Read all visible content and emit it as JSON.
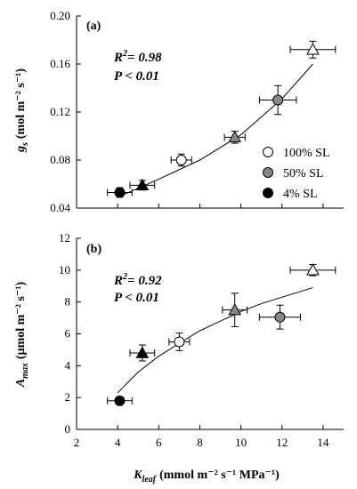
{
  "chart_data": [
    {
      "type": "scatter",
      "panel_label": "(a)",
      "ylabel_main": "g",
      "ylabel_sub": "s",
      "ylabel_unit": "(mol m⁻² s⁻¹)",
      "xlim": [
        2,
        15
      ],
      "ylim": [
        0.04,
        0.2
      ],
      "yticks": [
        0.04,
        0.08,
        0.12,
        0.16,
        0.2
      ],
      "ytick_labels": [
        "0.04",
        "0.08",
        "0.12",
        "0.16",
        "0.20"
      ],
      "stats_r2_prefix": "R",
      "stats_r2_suffix": "= 0.98",
      "stats_p": "P < 0.01",
      "legend": [
        {
          "label": "100% SL",
          "fill": "#ffffff"
        },
        {
          "label": "50% SL",
          "fill": "#888888"
        },
        {
          "label": "4% SL",
          "fill": "#000000"
        }
      ],
      "points": [
        {
          "x": 4.1,
          "y": 0.053,
          "xerr": 0.6,
          "yerr": 0.004,
          "marker": "circle",
          "fill": "#000000"
        },
        {
          "x": 5.2,
          "y": 0.059,
          "xerr": 0.6,
          "yerr": 0.004,
          "marker": "triangle",
          "fill": "#000000"
        },
        {
          "x": 7.1,
          "y": 0.08,
          "xerr": 0.5,
          "yerr": 0.005,
          "marker": "circle",
          "fill": "#ffffff"
        },
        {
          "x": 9.7,
          "y": 0.099,
          "xerr": 0.5,
          "yerr": 0.005,
          "marker": "triangle",
          "fill": "#888888"
        },
        {
          "x": 11.8,
          "y": 0.13,
          "xerr": 0.9,
          "yerr": 0.012,
          "marker": "circle",
          "fill": "#888888"
        },
        {
          "x": 13.5,
          "y": 0.172,
          "xerr": 1.1,
          "yerr": 0.007,
          "marker": "triangle",
          "fill": "#ffffff"
        }
      ],
      "fit_curve": {
        "x": [
          4.0,
          6.0,
          8.0,
          10.0,
          12.0,
          13.5
        ],
        "y": [
          0.049,
          0.064,
          0.08,
          0.101,
          0.131,
          0.16
        ]
      }
    },
    {
      "type": "scatter",
      "panel_label": "(b)",
      "ylabel_main": "A",
      "ylabel_sub": "max",
      "ylabel_unit": "(μmol m⁻² s⁻¹)",
      "xlabel_main": "K",
      "xlabel_sub": "leaf",
      "xlabel_unit": "(mmol m⁻² s⁻¹ MPa⁻¹)",
      "xlim": [
        2,
        15
      ],
      "ylim": [
        0,
        12
      ],
      "xticks": [
        2,
        4,
        6,
        8,
        10,
        12,
        14
      ],
      "xtick_labels": [
        "2",
        "4",
        "6",
        "8",
        "10",
        "12",
        "14"
      ],
      "yticks": [
        0,
        2,
        4,
        6,
        8,
        10,
        12
      ],
      "ytick_labels": [
        "0",
        "2",
        "4",
        "6",
        "8",
        "10",
        "12"
      ],
      "stats_r2_prefix": "R",
      "stats_r2_suffix": "= 0.92",
      "stats_p": "P < 0.01",
      "points": [
        {
          "x": 4.1,
          "y": 1.8,
          "xerr": 0.6,
          "yerr": 0.12,
          "marker": "circle",
          "fill": "#000000"
        },
        {
          "x": 5.2,
          "y": 4.8,
          "xerr": 0.6,
          "yerr": 0.5,
          "marker": "triangle",
          "fill": "#000000"
        },
        {
          "x": 7.0,
          "y": 5.5,
          "xerr": 0.5,
          "yerr": 0.55,
          "marker": "circle",
          "fill": "#ffffff"
        },
        {
          "x": 9.7,
          "y": 7.5,
          "xerr": 0.6,
          "yerr": 1.05,
          "marker": "triangle",
          "fill": "#888888"
        },
        {
          "x": 11.9,
          "y": 7.05,
          "xerr": 1.0,
          "yerr": 0.75,
          "marker": "circle",
          "fill": "#888888"
        },
        {
          "x": 13.5,
          "y": 10.0,
          "xerr": 1.1,
          "yerr": 0.35,
          "marker": "triangle",
          "fill": "#ffffff"
        }
      ],
      "fit_curve": {
        "x": [
          4.0,
          5.0,
          6.0,
          7.0,
          8.0,
          9.0,
          10.0,
          11.0,
          12.0,
          13.5
        ],
        "y": [
          2.3,
          3.6,
          4.6,
          5.4,
          6.2,
          6.8,
          7.4,
          7.9,
          8.3,
          8.9
        ]
      }
    }
  ]
}
